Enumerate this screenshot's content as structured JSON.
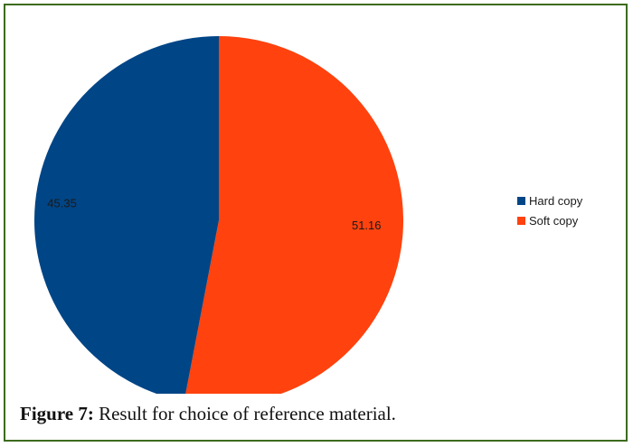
{
  "chart_data": {
    "type": "pie",
    "categories": [
      "Hard copy",
      "Soft copy"
    ],
    "values": [
      45.35,
      51.16
    ],
    "data_labels": [
      "45.35",
      "51.16"
    ],
    "colors": [
      "#004586",
      "#ff420e"
    ],
    "legend": "right",
    "title": ""
  },
  "caption": {
    "label": "Figure 7:",
    "text": " Result for choice of reference material."
  }
}
